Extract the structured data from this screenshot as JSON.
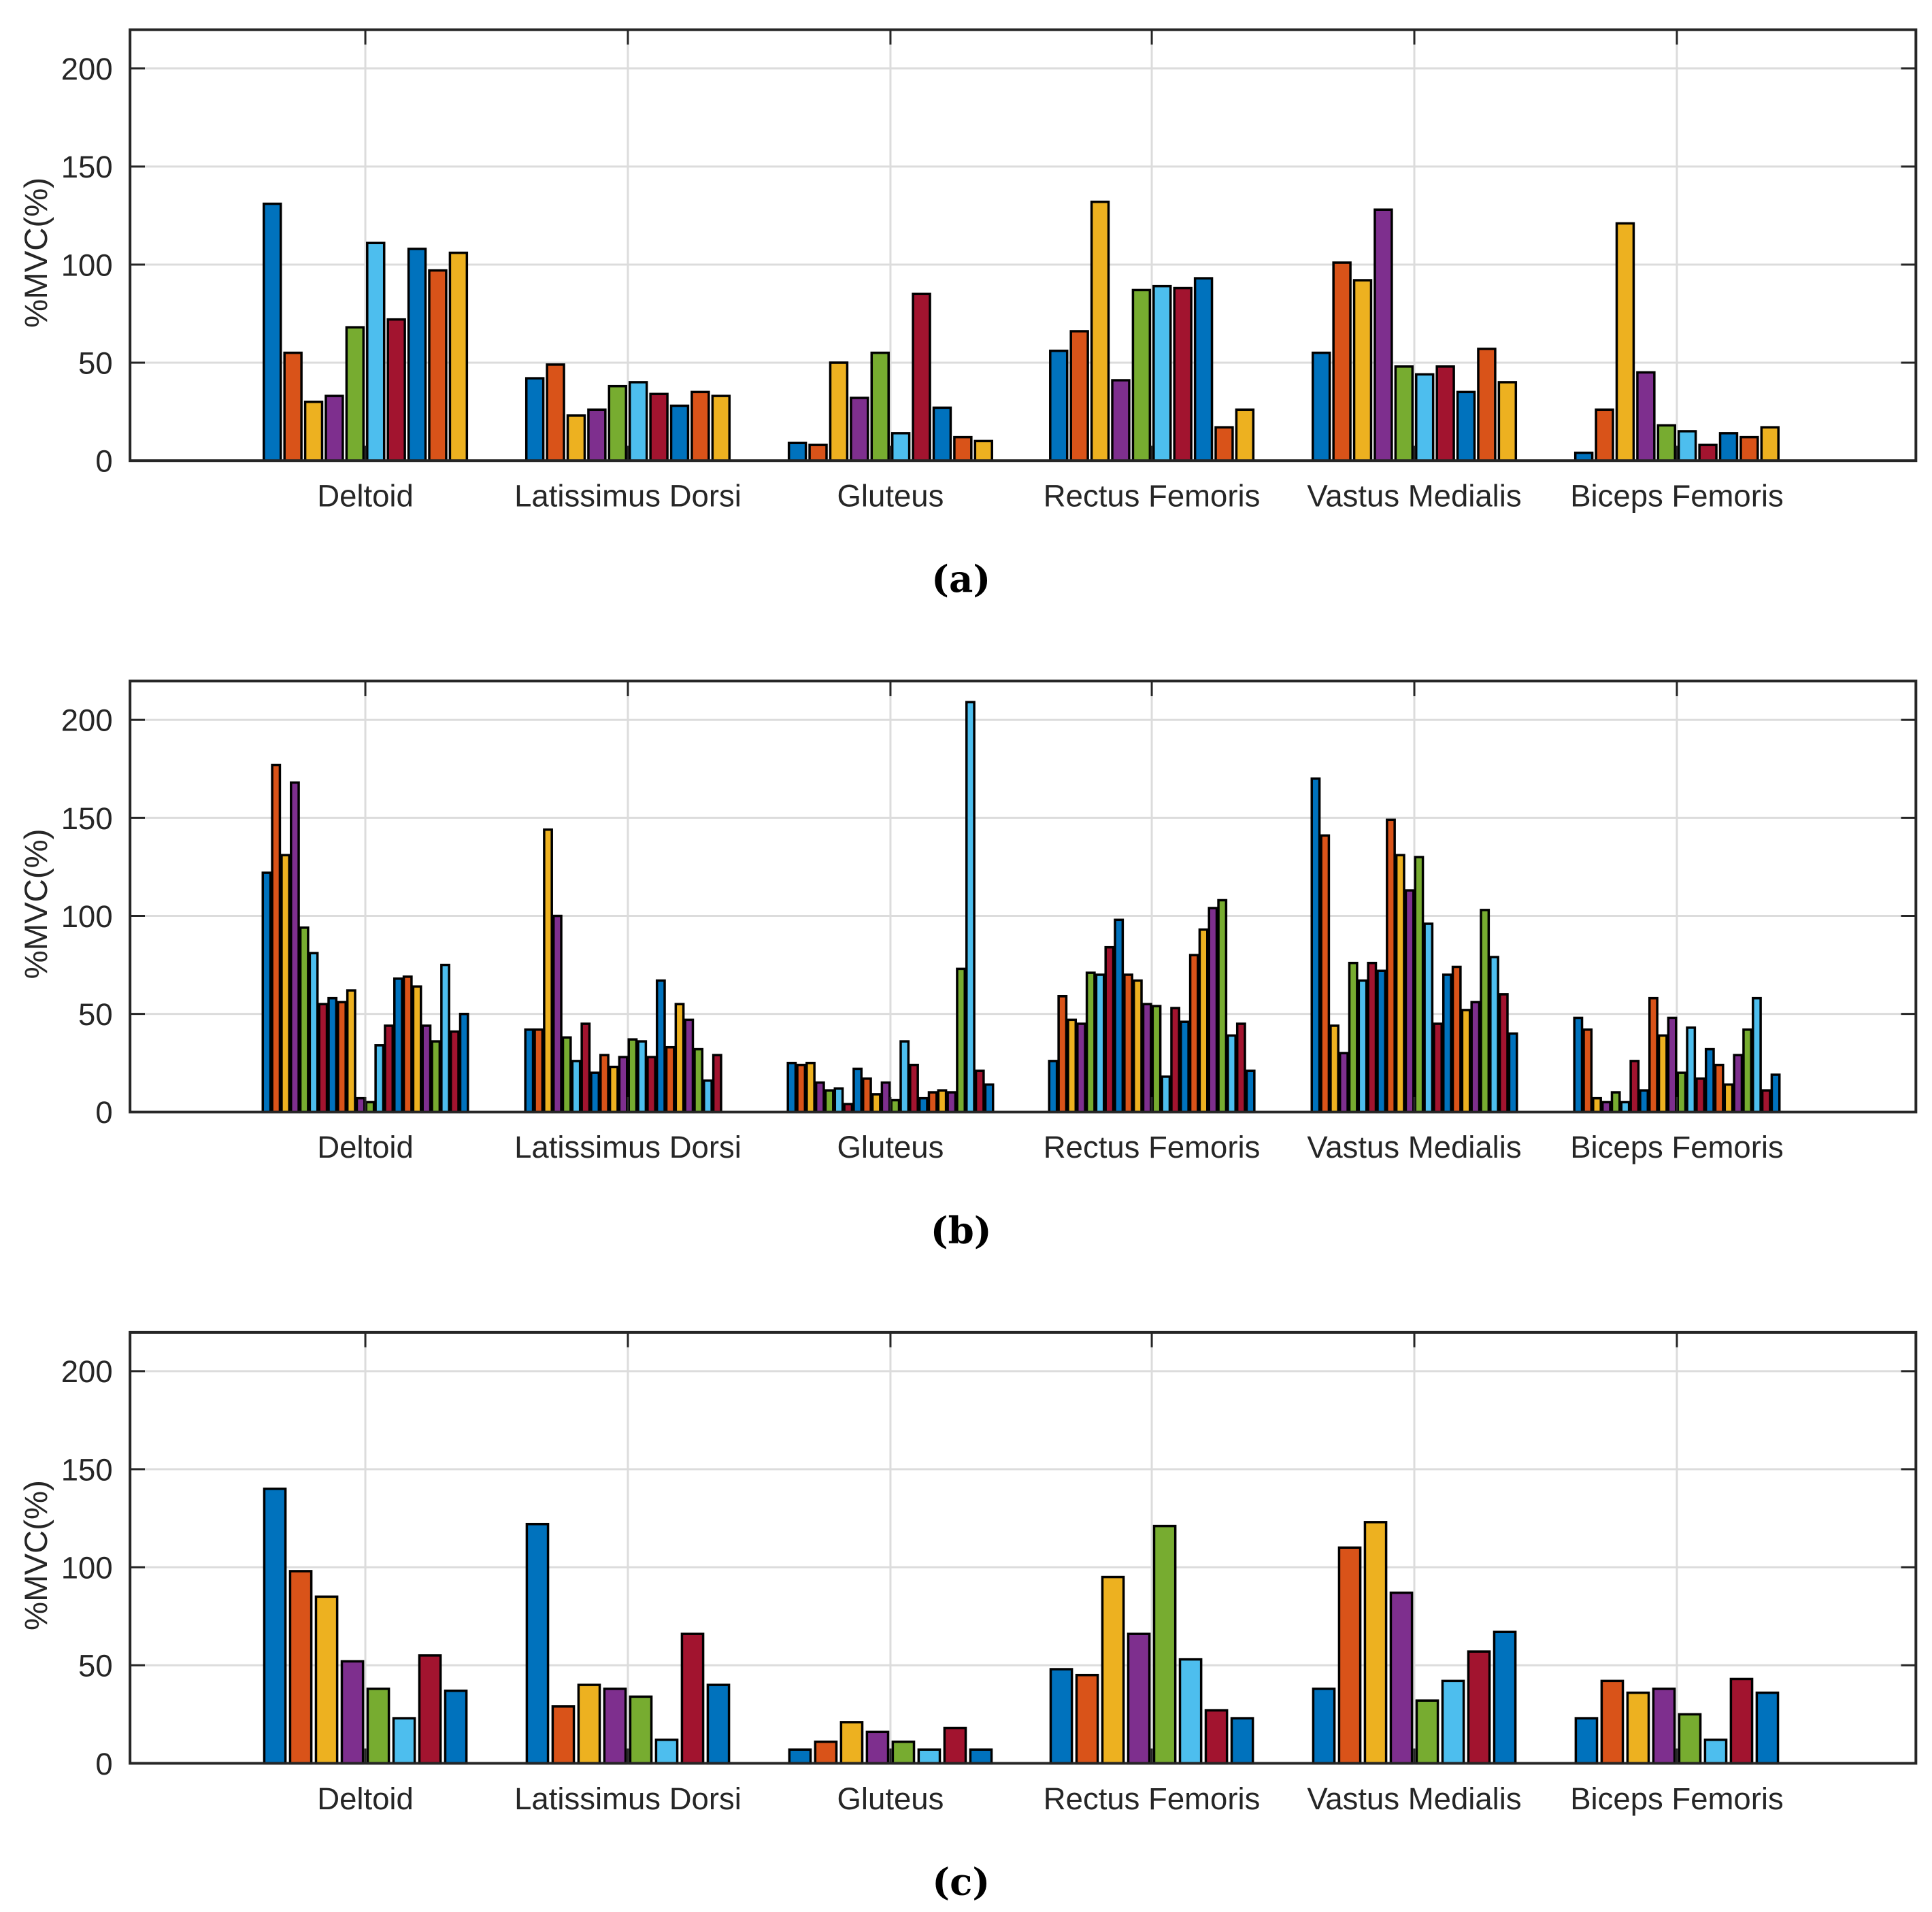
{
  "colors": [
    "#0072BD",
    "#D95319",
    "#EDB120",
    "#7E2F8E",
    "#77AC30",
    "#4DBEEE",
    "#A2142F"
  ],
  "chart_data": [
    {
      "type": "bar",
      "caption": "(a)",
      "ylabel": "%MVC(%)",
      "ylim": [
        0,
        220
      ],
      "yticks": [
        "0",
        "50",
        "100",
        "150",
        "200"
      ],
      "grid": true,
      "categories": [
        "Deltoid",
        "Latissimus Dorsi",
        "Gluteus",
        "Rectus Femoris",
        "Vastus Medialis",
        "Biceps Femoris"
      ],
      "groups": [
        [
          131,
          55,
          30,
          33,
          68,
          111,
          72,
          108,
          97,
          106
        ],
        [
          42,
          49,
          23,
          26,
          38,
          40,
          34,
          28,
          35,
          33
        ],
        [
          9,
          8,
          50,
          32,
          55,
          14,
          85,
          27,
          12,
          10
        ],
        [
          56,
          66,
          132,
          41,
          87,
          89,
          88,
          93,
          17,
          26
        ],
        [
          55,
          101,
          92,
          128,
          48,
          44,
          48,
          35,
          57,
          40
        ],
        [
          4,
          26,
          121,
          45,
          18,
          15,
          8,
          14,
          12,
          17
        ]
      ]
    },
    {
      "type": "bar",
      "caption": "(b)",
      "ylabel": "%MVC(%)",
      "ylim": [
        0,
        220
      ],
      "yticks": [
        "0",
        "50",
        "100",
        "150",
        "200"
      ],
      "grid": true,
      "categories": [
        "Deltoid",
        "Latissimus Dorsi",
        "Gluteus",
        "Rectus Femoris",
        "Vastus Medialis",
        "Biceps Femoris"
      ],
      "groups": [
        [
          122,
          177,
          131,
          168,
          94,
          81,
          55,
          58,
          56,
          62,
          7,
          5,
          34,
          44,
          68,
          69,
          64,
          44,
          36,
          75,
          41,
          50
        ],
        [
          42,
          42,
          144,
          100,
          38,
          26,
          45,
          20,
          29,
          23,
          28,
          37,
          36,
          28,
          67,
          33,
          55,
          47,
          32,
          16,
          29,
          0
        ],
        [
          25,
          24,
          25,
          15,
          11,
          12,
          4,
          22,
          17,
          9,
          15,
          6,
          36,
          24,
          7,
          10,
          11,
          10,
          73,
          209,
          21,
          14
        ],
        [
          26,
          59,
          47,
          45,
          71,
          70,
          84,
          98,
          70,
          67,
          55,
          54,
          18,
          53,
          46,
          80,
          93,
          104,
          108,
          39,
          45,
          21
        ],
        [
          170,
          141,
          44,
          30,
          76,
          67,
          76,
          72,
          149,
          131,
          113,
          130,
          96,
          45,
          70,
          74,
          52,
          56,
          103,
          79,
          60,
          40
        ],
        [
          48,
          42,
          7,
          5,
          10,
          5,
          26,
          11,
          58,
          39,
          48,
          20,
          43,
          17,
          32,
          24,
          14,
          29,
          42,
          58,
          11,
          19
        ]
      ]
    },
    {
      "type": "bar",
      "caption": "(c)",
      "ylabel": "%MVC(%)",
      "ylim": [
        0,
        220
      ],
      "yticks": [
        "0",
        "50",
        "100",
        "150",
        "200"
      ],
      "grid": true,
      "categories": [
        "Deltoid",
        "Latissimus Dorsi",
        "Gluteus",
        "Rectus Femoris",
        "Vastus Medialis",
        "Biceps Femoris"
      ],
      "groups": [
        [
          140,
          98,
          85,
          52,
          38,
          23,
          55,
          37
        ],
        [
          122,
          29,
          40,
          38,
          34,
          12,
          66,
          40
        ],
        [
          7,
          11,
          21,
          16,
          11,
          7,
          18,
          7
        ],
        [
          48,
          45,
          95,
          66,
          121,
          53,
          27,
          23
        ],
        [
          38,
          110,
          123,
          87,
          32,
          42,
          57,
          67
        ],
        [
          23,
          42,
          36,
          38,
          25,
          12,
          43,
          36
        ]
      ]
    }
  ]
}
